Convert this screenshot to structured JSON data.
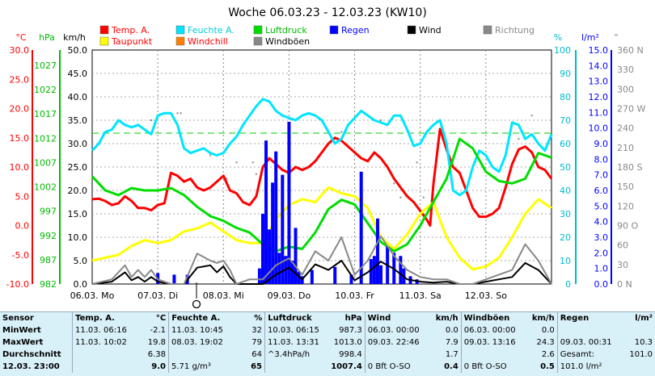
{
  "chart_data": {
    "type": "line",
    "title": "Woche 06.03.23 - 12.03.23 (KW10)",
    "x_days": [
      "06.03.  Mo",
      "07.03.  Di",
      "08.03.  Mi",
      "09.03.  Do",
      "10.03.  Fr",
      "11.03.  Sa",
      "12.03.  So"
    ],
    "legend": [
      {
        "name": "Temp. A.",
        "color": "#ff0000"
      },
      {
        "name": "Taupunkt",
        "color": "#ffff00"
      },
      {
        "name": "Feuchte A.",
        "color": "#00e5ff"
      },
      {
        "name": "Windchill",
        "color": "#ff8000"
      },
      {
        "name": "Luftdruck",
        "color": "#00dd00"
      },
      {
        "name": "Windböen",
        "color": "#888888"
      },
      {
        "name": "Regen",
        "color": "#0000ff"
      },
      {
        "name": "Wind",
        "color": "#000000"
      },
      {
        "name": "Richtung",
        "color": "#888888"
      }
    ],
    "axes": {
      "temp": {
        "unit": "°C",
        "color": "#ff0000",
        "ticks": [
          "30.0",
          "25.0",
          "20.0",
          "15.0",
          "10.0",
          "5.0",
          "0.0",
          "-5.0",
          "-10.0"
        ],
        "range": [
          -10,
          30
        ]
      },
      "pressure": {
        "unit": "hPa",
        "color": "#00bb00",
        "ticks": [
          "1027",
          "1022",
          "1017",
          "1012",
          "1007",
          "1002",
          "997",
          "992",
          "987",
          "982"
        ]
      },
      "wind": {
        "unit": "km/h",
        "color": "#000000",
        "ticks": [
          "50.0",
          "45.0",
          "40.0",
          "35.0",
          "30.0",
          "25.0",
          "20.0",
          "15.0",
          "10.0",
          "5.0",
          "0.0"
        ],
        "range": [
          0,
          50
        ]
      },
      "humidity": {
        "unit": "%",
        "color": "#00bbcc",
        "ticks": [
          "100",
          "90",
          "80",
          "70",
          "60",
          "50",
          "40",
          "30",
          "20",
          "10",
          "0"
        ],
        "range": [
          0,
          100
        ]
      },
      "rain": {
        "unit": "l/m²",
        "color": "#0000ff",
        "ticks": [
          "15.0",
          "14.0",
          "13.0",
          "12.0",
          "11.0",
          "10.0",
          "9.0",
          "8.0",
          "7.0",
          "6.0",
          "5.0",
          "4.0",
          "3.0",
          "2.0",
          "1.0",
          "0.0"
        ],
        "range": [
          0,
          15
        ]
      },
      "direction": {
        "unit": "°",
        "color": "#888888",
        "ticks": [
          "360 N",
          "330",
          "300",
          "270 W",
          "240",
          "210",
          "180 S",
          "150",
          "120",
          "90 O",
          "60",
          "30",
          "0 N"
        ]
      }
    },
    "series": [
      {
        "name": "Temp. A.",
        "axis": "temp",
        "color": "#ff0000",
        "x": [
          0,
          0.1,
          0.2,
          0.3,
          0.4,
          0.5,
          0.6,
          0.7,
          0.8,
          0.9,
          1.0,
          1.1,
          1.2,
          1.3,
          1.4,
          1.5,
          1.6,
          1.7,
          1.8,
          1.9,
          2.0,
          2.1,
          2.2,
          2.3,
          2.4,
          2.5,
          2.6,
          2.7,
          2.8,
          2.9,
          3.0,
          3.1,
          3.2,
          3.3,
          3.4,
          3.5,
          3.6,
          3.7,
          3.8,
          3.9,
          4.0,
          4.1,
          4.2,
          4.3,
          4.4,
          4.5,
          4.6,
          4.7,
          4.8,
          4.9,
          5.0,
          5.1,
          5.15,
          5.2,
          5.3,
          5.4,
          5.5,
          5.6,
          5.7,
          5.8,
          5.9,
          6.0,
          6.1,
          6.2,
          6.3,
          6.4,
          6.5,
          6.6,
          6.7,
          6.8,
          6.9,
          7.0
        ],
        "y": [
          4.5,
          4.6,
          4.2,
          3.5,
          3.8,
          5.0,
          4.2,
          3.0,
          3.0,
          2.6,
          3.5,
          3.8,
          9.0,
          8.5,
          7.5,
          8.0,
          6.5,
          6.0,
          6.5,
          7.5,
          8.5,
          6.0,
          5.5,
          4.0,
          3.5,
          5.0,
          10.0,
          11.5,
          10.5,
          9.5,
          9.0,
          10.0,
          9.5,
          10.0,
          11.0,
          12.5,
          14.0,
          15.0,
          14.5,
          13.5,
          12.5,
          11.5,
          11.0,
          12.5,
          11.5,
          10.0,
          8.0,
          6.5,
          5.0,
          4.0,
          2.5,
          1.0,
          0.0,
          7.0,
          16.5,
          13.0,
          10.0,
          9.0,
          6.0,
          3.0,
          1.5,
          1.5,
          2.0,
          3.0,
          6.5,
          10.5,
          13.0,
          13.5,
          12.5,
          10.0,
          9.5,
          8.0
        ]
      },
      {
        "name": "Taupunkt",
        "axis": "temp",
        "color": "#ffff00",
        "x": [
          0,
          0.2,
          0.4,
          0.6,
          0.8,
          1.0,
          1.2,
          1.4,
          1.6,
          1.8,
          2.0,
          2.2,
          2.4,
          2.6,
          2.8,
          3.0,
          3.2,
          3.4,
          3.6,
          3.8,
          4.0,
          4.2,
          4.4,
          4.6,
          4.8,
          5.0,
          5.2,
          5.4,
          5.6,
          5.8,
          6.0,
          6.2,
          6.4,
          6.6,
          6.8,
          7.0
        ],
        "y": [
          -6.0,
          -5.5,
          -5.0,
          -3.5,
          -2.5,
          -3.0,
          -2.5,
          -1.0,
          -0.5,
          0.5,
          -1.0,
          -2.5,
          -3.0,
          -3.0,
          1.0,
          3.5,
          4.5,
          4.0,
          6.5,
          5.5,
          5.0,
          3.0,
          -2.0,
          -4.0,
          -1.5,
          2.0,
          4.0,
          -2.0,
          -5.5,
          -7.5,
          -7.0,
          -5.5,
          -2.0,
          2.0,
          4.5,
          3.0
        ]
      },
      {
        "name": "Feuchte A.",
        "axis": "humidity",
        "color": "#00e5ff",
        "x": [
          0,
          0.1,
          0.2,
          0.3,
          0.4,
          0.5,
          0.6,
          0.7,
          0.8,
          0.9,
          1.0,
          1.1,
          1.2,
          1.3,
          1.4,
          1.5,
          1.6,
          1.7,
          1.8,
          1.9,
          2.0,
          2.1,
          2.2,
          2.3,
          2.4,
          2.5,
          2.6,
          2.7,
          2.8,
          2.9,
          3.0,
          3.1,
          3.2,
          3.3,
          3.4,
          3.5,
          3.6,
          3.7,
          3.8,
          3.9,
          4.0,
          4.1,
          4.2,
          4.3,
          4.4,
          4.5,
          4.6,
          4.7,
          4.8,
          4.9,
          5.0,
          5.1,
          5.2,
          5.3,
          5.4,
          5.5,
          5.6,
          5.7,
          5.8,
          5.9,
          6.0,
          6.1,
          6.2,
          6.3,
          6.4,
          6.5,
          6.6,
          6.7,
          6.8,
          6.9,
          7.0
        ],
        "y": [
          57,
          60,
          65,
          66,
          70,
          68,
          67,
          68,
          66,
          64,
          72,
          73,
          73,
          68,
          58,
          56,
          57,
          58,
          56,
          55,
          56,
          60,
          63,
          68,
          72,
          76,
          79,
          78,
          74,
          72,
          71,
          70,
          72,
          73,
          72,
          70,
          65,
          60,
          62,
          68,
          71,
          74,
          72,
          70,
          69,
          68,
          72,
          72,
          66,
          59,
          60,
          65,
          68,
          70,
          60,
          40,
          38,
          40,
          50,
          57,
          55,
          50,
          48,
          55,
          69,
          68,
          62,
          64,
          60,
          57,
          64
        ]
      },
      {
        "name": "Luftdruck",
        "axis": "humidity",
        "color": "#00dd00",
        "x": [
          0,
          0.2,
          0.4,
          0.6,
          0.8,
          1.0,
          1.2,
          1.4,
          1.6,
          1.8,
          2.0,
          2.2,
          2.4,
          2.6,
          2.8,
          3.0,
          3.2,
          3.4,
          3.6,
          3.8,
          4.0,
          4.2,
          4.4,
          4.6,
          4.8,
          5.0,
          5.2,
          5.4,
          5.6,
          5.8,
          6.0,
          6.2,
          6.4,
          6.6,
          6.8,
          7.0
        ],
        "y": [
          46,
          40,
          38,
          41,
          40,
          40,
          41,
          38,
          33,
          29,
          27,
          24,
          22,
          17,
          14,
          16,
          15,
          22,
          32,
          36,
          34,
          26,
          18,
          14,
          17,
          25,
          35,
          45,
          62,
          58,
          48,
          44,
          43,
          45,
          56,
          54
        ]
      },
      {
        "name": "Regen",
        "axis": "rain",
        "color": "#0000ff",
        "x": [
          1.0,
          1.25,
          1.45,
          2.55,
          2.6,
          2.65,
          2.7,
          2.75,
          2.8,
          2.85,
          2.9,
          2.95,
          3.0,
          3.05,
          3.1,
          3.15,
          3.2,
          3.35,
          3.7,
          3.95,
          4.1,
          4.25,
          4.3,
          4.35,
          4.4,
          4.5,
          4.6,
          4.7,
          4.75,
          4.85,
          4.95
        ],
        "y": [
          0.7,
          0.6,
          0.6,
          1.0,
          4.5,
          9.2,
          3.5,
          6.5,
          8.5,
          2.0,
          7.0,
          1.8,
          10.4,
          1.5,
          3.6,
          0.8,
          0.5,
          0.9,
          1.1,
          0.6,
          7.2,
          1.6,
          1.8,
          4.2,
          1.2,
          2.4,
          2.0,
          1.8,
          1.0,
          0.5,
          0.3
        ]
      },
      {
        "name": "Wind",
        "axis": "wind",
        "color": "#000000",
        "x": [
          0,
          0.3,
          0.5,
          0.6,
          0.7,
          0.8,
          0.9,
          1.0,
          1.2,
          1.4,
          1.6,
          1.8,
          1.9,
          2.0,
          2.1,
          2.2,
          2.4,
          2.6,
          2.8,
          3.0,
          3.2,
          3.4,
          3.6,
          3.8,
          4.0,
          4.2,
          4.4,
          4.6,
          4.8,
          5.0,
          5.2,
          5.4,
          5.6,
          5.8,
          6.0,
          6.2,
          6.4,
          6.6,
          6.8,
          7.0
        ],
        "y": [
          0,
          0.5,
          2.5,
          0.8,
          1.5,
          0.5,
          1.5,
          0.5,
          0,
          0,
          3.5,
          4.0,
          2.5,
          3.8,
          1.5,
          0,
          0,
          0,
          2.0,
          3.5,
          1.0,
          4.2,
          3.0,
          5.0,
          0.8,
          2.5,
          4.8,
          3.2,
          1.0,
          0.5,
          0.3,
          0.5,
          0,
          0,
          0.5,
          1.0,
          1.5,
          4.5,
          3.0,
          0
        ]
      },
      {
        "name": "Windböen",
        "axis": "wind",
        "color": "#888888",
        "x": [
          0,
          0.3,
          0.5,
          0.6,
          0.7,
          0.8,
          0.9,
          1.0,
          1.2,
          1.4,
          1.6,
          1.8,
          1.9,
          2.0,
          2.1,
          2.2,
          2.4,
          2.6,
          2.8,
          3.0,
          3.2,
          3.4,
          3.6,
          3.8,
          4.0,
          4.2,
          4.4,
          4.6,
          4.8,
          5.0,
          5.2,
          5.4,
          5.6,
          5.8,
          6.0,
          6.2,
          6.4,
          6.6,
          6.8,
          7.0
        ],
        "y": [
          0,
          1.0,
          4.0,
          1.5,
          3.0,
          1.5,
          3.0,
          1.0,
          0,
          0,
          6.5,
          5.0,
          4.5,
          5.0,
          3.0,
          0,
          1.0,
          1.0,
          4.0,
          5.5,
          2.0,
          7.0,
          5.0,
          10.0,
          2.0,
          5.0,
          10.2,
          6.0,
          3.0,
          1.5,
          1.0,
          1.0,
          0,
          0,
          1.0,
          2.0,
          3.0,
          8.5,
          5.0,
          0
        ]
      }
    ],
    "reference_line": {
      "axis": "temp",
      "value": 15.8,
      "color": "#00cc00",
      "style": "dashed"
    }
  },
  "table": {
    "headers": [
      "Sensor",
      "Temp. A.",
      "°C",
      "Feuchte A.",
      "%",
      "Luftdruck",
      "hPa",
      "Wind",
      "km/h",
      "Windböen",
      "km/h",
      "Regen",
      "l/m²"
    ],
    "rows": [
      [
        "MinWert",
        "11.03.  06:16",
        "-2.1",
        "11.03.  10:45",
        "32",
        "10.03.  06:15",
        "987.3",
        "06.03.  00:00",
        "0.0",
        "06.03.  00:00",
        "0.0",
        "",
        ""
      ],
      [
        "MaxWert",
        "11.03.  10:02",
        "19.8",
        "08.03.  19:02",
        "79",
        "11.03.  13:31",
        "1013.0",
        "09.03.  22:46",
        "7.9",
        "09.03.  13:16",
        "24.3",
        "09.03.  00:31",
        "10.3"
      ],
      [
        "Durchschnitt",
        "",
        "6.38",
        "",
        "64",
        "^3.4hPa/h",
        "998.4",
        "",
        "1.7",
        "",
        "2.6",
        "Gesamt:",
        "101.0"
      ],
      [
        "12.03.  23:00",
        "",
        "9.0",
        "5.71 g/m³",
        "65",
        "",
        "1007.4",
        "0 Bft O-SO",
        "0.4",
        "0 Bft O-SO",
        "0.5",
        "101.0 l/m²",
        ""
      ]
    ]
  }
}
